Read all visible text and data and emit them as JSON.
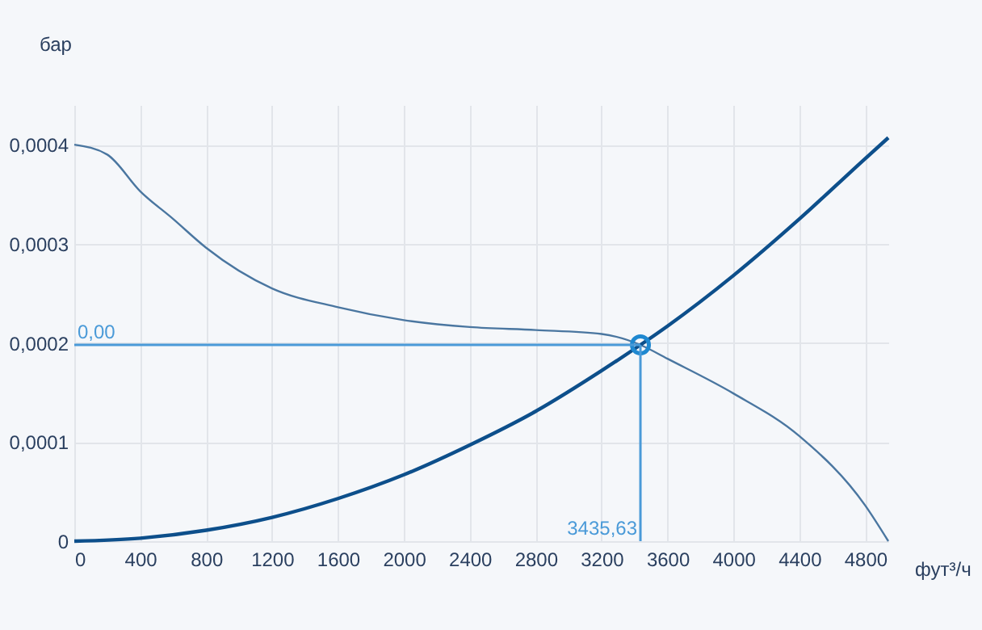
{
  "chart_data": {
    "type": "line",
    "xlabel": "фут³/ч",
    "ylabel": "бар",
    "xlim": [
      0,
      4940
    ],
    "ylim": [
      0,
      0.00044
    ],
    "xticks": [
      0,
      400,
      800,
      1200,
      1600,
      2000,
      2400,
      2800,
      3200,
      3600,
      4000,
      4400,
      4800
    ],
    "yticks": [
      {
        "value": 0,
        "label": "0"
      },
      {
        "value": 0.0001,
        "label": "0,0001"
      },
      {
        "value": 0.0002,
        "label": "0,0002"
      },
      {
        "value": 0.0003,
        "label": "0,0003"
      },
      {
        "value": 0.0004,
        "label": "0,0004"
      }
    ],
    "grid": true,
    "marker": "none",
    "line_style": "solid",
    "series": [
      {
        "color": "#4a76a0",
        "x": [
          0,
          200,
          400,
          600,
          800,
          1200,
          1600,
          2000,
          2400,
          2800,
          3200,
          3435.63,
          3600,
          4000,
          4400,
          4800,
          4940
        ],
        "values": [
          0.0004,
          0.00039,
          0.000353,
          0.000325,
          0.000296,
          0.000255,
          0.000236,
          0.000223,
          0.000216,
          0.000213,
          0.000209,
          0.000198,
          0.000184,
          0.000149,
          0.000106,
          3.6e-05,
          0
        ]
      },
      {
        "color": "#0d4f8b",
        "x": [
          0,
          400,
          800,
          1200,
          1600,
          2000,
          2400,
          2800,
          3200,
          3435.63,
          3600,
          4000,
          4400,
          4800,
          4940
        ],
        "values": [
          0,
          3e-06,
          1.1e-05,
          2.4e-05,
          4.3e-05,
          6.7e-05,
          9.7e-05,
          0.000131,
          0.000172,
          0.000198,
          0.000217,
          0.000268,
          0.000325,
          0.000386,
          0.000407
        ]
      },
      {
        "type": "scatter",
        "marker": "circle",
        "color": "#1f88d0",
        "x": [
          3435.63
        ],
        "values": [
          0.000198
        ]
      }
    ],
    "ref_lines": [
      {
        "axis": "y",
        "value": 0.000198,
        "label": "0,00",
        "color": "#4a9ad8"
      },
      {
        "axis": "x",
        "value": 3435.63,
        "label": "3435,63",
        "color": "#4a9ad8"
      }
    ]
  }
}
